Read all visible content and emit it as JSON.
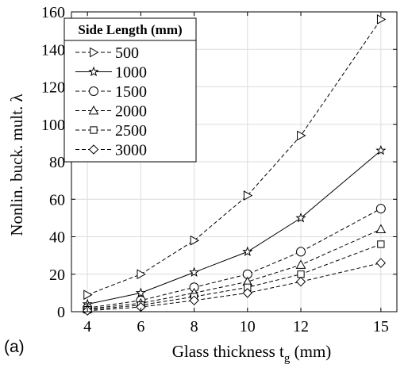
{
  "panel_label": "(a)",
  "chart_data": {
    "type": "line",
    "xlabel": "Glass thickness t",
    "xlabel_subscript": "g",
    "xlabel_unit": " (mm)",
    "ylabel": "Nonlin. buck. mult. λ",
    "x": [
      4,
      6,
      8,
      10,
      12,
      15
    ],
    "x_ticks": [
      4,
      6,
      8,
      10,
      12,
      15
    ],
    "y_ticks": [
      0,
      20,
      40,
      60,
      80,
      100,
      120,
      140,
      160
    ],
    "xlim": [
      3.4,
      15.6
    ],
    "ylim": [
      0,
      160
    ],
    "grid": true,
    "legend": {
      "title": "Side Length (mm)",
      "placement": "top-left"
    },
    "series": [
      {
        "name": "500",
        "marker": "triangle-right",
        "dash": "dashed",
        "values": [
          9,
          20,
          38,
          62,
          94,
          156
        ]
      },
      {
        "name": "1000",
        "marker": "star",
        "dash": "solid",
        "values": [
          4,
          10,
          21,
          32,
          50,
          86
        ]
      },
      {
        "name": "1500",
        "marker": "circle",
        "dash": "dashed",
        "values": [
          2,
          6,
          13,
          20,
          32,
          55
        ]
      },
      {
        "name": "2000",
        "marker": "triangle-up",
        "dash": "dashed",
        "values": [
          1.5,
          4.5,
          10,
          16,
          25,
          44
        ]
      },
      {
        "name": "2500",
        "marker": "square",
        "dash": "dashed",
        "values": [
          1,
          3.5,
          8,
          13,
          20,
          36
        ]
      },
      {
        "name": "3000",
        "marker": "diamond",
        "dash": "dashed",
        "values": [
          0.5,
          2.5,
          6,
          10,
          16,
          26
        ]
      }
    ]
  }
}
